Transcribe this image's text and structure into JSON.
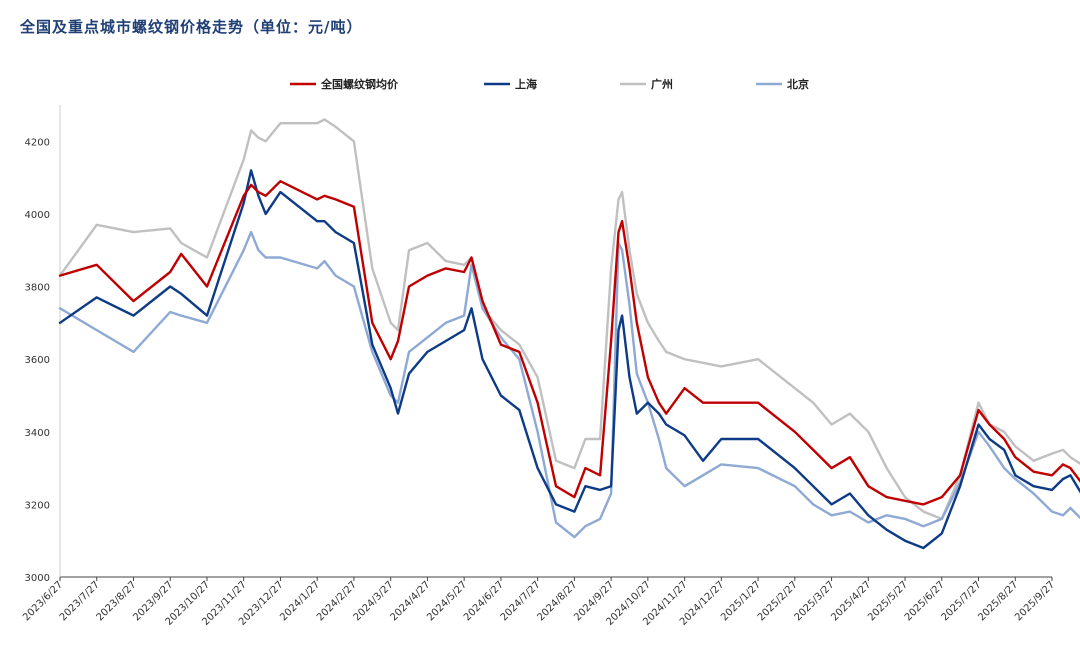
{
  "chart_data": {
    "type": "line",
    "title": "全国及重点城市螺纹钢价格走势（单位：元/吨）",
    "xlabel": "",
    "ylabel": "",
    "ylim": [
      3000,
      4300
    ],
    "yticks": [
      3000,
      3200,
      3400,
      3600,
      3800,
      4000,
      4200
    ],
    "grid": false,
    "legend_position": "top",
    "categories": [
      "2023/6/27",
      "2023/7/27",
      "2023/8/27",
      "2023/9/27",
      "2023/10/27",
      "2023/11/27",
      "2023/12/27",
      "2024/1/27",
      "2024/2/27",
      "2024/3/27",
      "2024/4/27",
      "2024/5/27",
      "2024/6/27",
      "2024/7/27",
      "2024/8/27",
      "2024/9/27",
      "2024/10/27",
      "2024/11/27",
      "2024/12/27",
      "2025/1/27",
      "2025/2/27",
      "2025/3/27",
      "2025/4/27",
      "2025/5/27",
      "2025/6/27",
      "2025/7/27",
      "2025/8/27",
      "2025/9/27"
    ],
    "x": [
      0,
      1,
      2,
      3,
      3.3,
      4,
      5,
      5.2,
      5.4,
      5.6,
      6,
      7,
      7.2,
      7.5,
      8,
      8.5,
      9,
      9.2,
      9.5,
      10,
      10.5,
      11,
      11.2,
      11.5,
      12,
      12.5,
      13,
      13.5,
      14,
      14.3,
      14.7,
      15,
      15.2,
      15.3,
      15.5,
      15.7,
      16,
      16.3,
      16.5,
      17,
      17.5,
      18,
      19,
      20,
      20.5,
      21,
      21.5,
      22,
      22.5,
      23,
      23.5,
      24,
      24.5,
      25,
      25.3,
      25.7,
      26,
      26.5,
      27,
      27.3,
      27.5,
      27.8
    ],
    "series": [
      {
        "name": "全国螺纹钢均价",
        "color": "#c00000",
        "values": [
          3830,
          3860,
          3760,
          3840,
          3890,
          3800,
          4050,
          4080,
          4060,
          4050,
          4090,
          4040,
          4050,
          4040,
          4020,
          3700,
          3600,
          3650,
          3800,
          3830,
          3850,
          3840,
          3880,
          3760,
          3640,
          3620,
          3480,
          3250,
          3220,
          3300,
          3280,
          3650,
          3950,
          3980,
          3850,
          3700,
          3550,
          3480,
          3450,
          3520,
          3480,
          3480,
          3480,
          3400,
          3350,
          3300,
          3330,
          3250,
          3220,
          3210,
          3200,
          3220,
          3280,
          3460,
          3420,
          3380,
          3330,
          3290,
          3280,
          3310,
          3300,
          3260
        ]
      },
      {
        "name": "上海",
        "color": "#0d3b85",
        "values": [
          3700,
          3770,
          3720,
          3800,
          3780,
          3720,
          4030,
          4120,
          4050,
          4000,
          4060,
          3980,
          3980,
          3950,
          3920,
          3640,
          3520,
          3450,
          3560,
          3620,
          3650,
          3680,
          3740,
          3600,
          3500,
          3460,
          3300,
          3200,
          3180,
          3250,
          3240,
          3250,
          3680,
          3720,
          3550,
          3450,
          3480,
          3450,
          3420,
          3390,
          3320,
          3380,
          3380,
          3300,
          3250,
          3200,
          3230,
          3170,
          3130,
          3100,
          3080,
          3120,
          3250,
          3420,
          3380,
          3350,
          3280,
          3250,
          3240,
          3270,
          3280,
          3230
        ]
      },
      {
        "name": "广州",
        "color": "#c0c0c0",
        "values": [
          3830,
          3970,
          3950,
          3960,
          3920,
          3880,
          4150,
          4230,
          4210,
          4200,
          4250,
          4250,
          4260,
          4240,
          4200,
          3850,
          3700,
          3680,
          3900,
          3920,
          3870,
          3860,
          3880,
          3740,
          3680,
          3640,
          3550,
          3320,
          3300,
          3380,
          3380,
          3850,
          4040,
          4060,
          3900,
          3780,
          3700,
          3650,
          3620,
          3600,
          3590,
          3580,
          3600,
          3520,
          3480,
          3420,
          3450,
          3400,
          3300,
          3220,
          3180,
          3160,
          3280,
          3480,
          3420,
          3400,
          3360,
          3320,
          3340,
          3350,
          3330,
          3310
        ]
      },
      {
        "name": "北京",
        "color": "#8ea9d4",
        "values": [
          3740,
          3680,
          3620,
          3730,
          3720,
          3700,
          3900,
          3950,
          3900,
          3880,
          3880,
          3850,
          3870,
          3830,
          3800,
          3620,
          3500,
          3480,
          3620,
          3660,
          3700,
          3720,
          3860,
          3740,
          3660,
          3600,
          3400,
          3150,
          3110,
          3140,
          3160,
          3230,
          3920,
          3900,
          3750,
          3560,
          3480,
          3380,
          3300,
          3250,
          3280,
          3310,
          3300,
          3250,
          3200,
          3170,
          3180,
          3150,
          3170,
          3160,
          3140,
          3160,
          3260,
          3400,
          3360,
          3300,
          3270,
          3230,
          3180,
          3170,
          3190,
          3160
        ]
      }
    ]
  }
}
